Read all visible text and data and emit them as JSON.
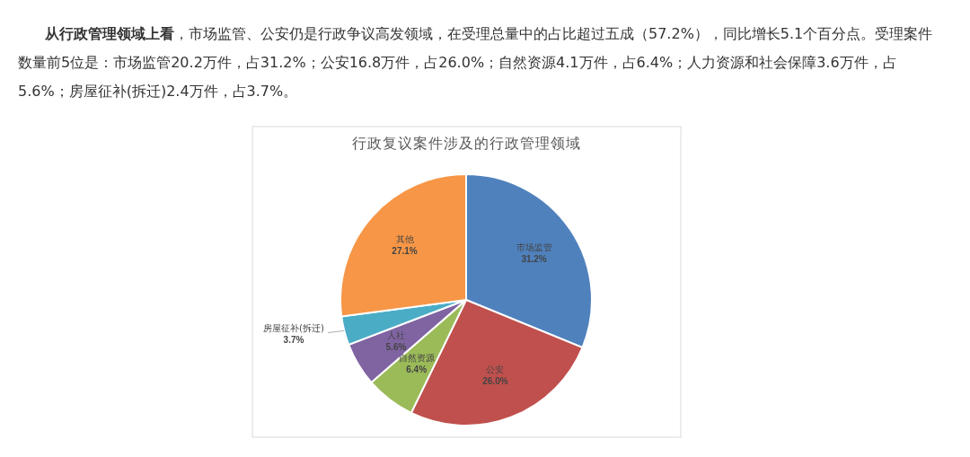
{
  "chart_data": {
    "type": "pie",
    "title": "行政复议案件涉及的行政管理领域",
    "annotations": [
      "从行政管理领域上看",
      "，市场监管、公安仍是行政争议高发领域，在受理总量中的占比超过五成（57.2%），同比增长5.1个百分点。受理案件数量前5位是：市场监管20.2万件，占31.2%；公安16.8万件，占26.0%；自然资源4.1万件，占6.4%；人力资源和社会保障3.6万件，占5.6%；房屋征补(拆迁)2.4万件，占3.7%。"
    ],
    "categories": [
      "市场监管",
      "公安",
      "自然资源",
      "人社",
      "房屋征补(拆迁)",
      "其他"
    ],
    "values": [
      31.2,
      26.0,
      6.4,
      5.6,
      3.7,
      27.1
    ],
    "value_labels": [
      "31.2%",
      "26.0%",
      "6.4%",
      "5.6%",
      "3.7%",
      "27.1%"
    ],
    "colors": [
      "#4f81bd",
      "#c0504d",
      "#9bbb59",
      "#8064a2",
      "#4bacc6",
      "#f79646"
    ]
  }
}
